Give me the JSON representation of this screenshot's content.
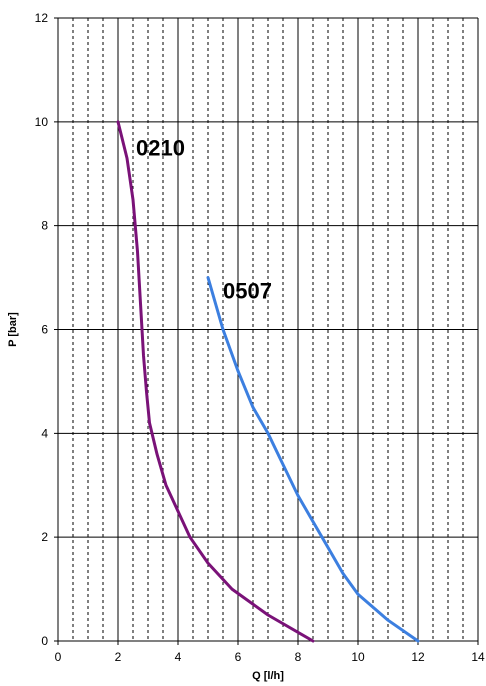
{
  "chart_data": {
    "type": "line",
    "title": "",
    "xlabel": "Q [l/h]",
    "ylabel": "P [bar]",
    "xlim": [
      0,
      14
    ],
    "ylim": [
      0,
      12
    ],
    "x_major_ticks": [
      "0",
      "2",
      "4",
      "6",
      "8",
      "10",
      "12",
      "14"
    ],
    "y_major_ticks": [
      "0",
      "2",
      "4",
      "6",
      "8",
      "10",
      "12"
    ],
    "grid": {
      "major": "solid",
      "minor_x": "dashed",
      "minor_x_step": 0.5
    },
    "legend": "none",
    "series": [
      {
        "name": "0210",
        "color": "#7a1278",
        "points": [
          [
            2.0,
            10.0
          ],
          [
            2.3,
            9.3
          ],
          [
            2.5,
            8.5
          ],
          [
            2.65,
            7.5
          ],
          [
            2.75,
            6.5
          ],
          [
            2.85,
            5.5
          ],
          [
            2.95,
            4.8
          ],
          [
            3.05,
            4.2
          ],
          [
            3.3,
            3.6
          ],
          [
            3.6,
            3.0
          ],
          [
            4.0,
            2.5
          ],
          [
            4.4,
            2.0
          ],
          [
            5.0,
            1.5
          ],
          [
            5.8,
            1.0
          ],
          [
            7.0,
            0.5
          ],
          [
            8.5,
            0.0
          ]
        ]
      },
      {
        "name": "0507",
        "color": "#3c7fe0",
        "points": [
          [
            5.0,
            7.0
          ],
          [
            5.5,
            6.0
          ],
          [
            6.0,
            5.2
          ],
          [
            6.5,
            4.5
          ],
          [
            7.0,
            4.0
          ],
          [
            7.5,
            3.4
          ],
          [
            8.0,
            2.8
          ],
          [
            8.5,
            2.3
          ],
          [
            9.0,
            1.8
          ],
          [
            9.5,
            1.3
          ],
          [
            10.0,
            0.9
          ],
          [
            11.0,
            0.4
          ],
          [
            12.0,
            0.0
          ]
        ]
      }
    ]
  },
  "series_labels": [
    {
      "text": "0210",
      "x": 2.6,
      "y": 9.35
    },
    {
      "text": "0507",
      "x": 5.5,
      "y": 6.6
    }
  ]
}
